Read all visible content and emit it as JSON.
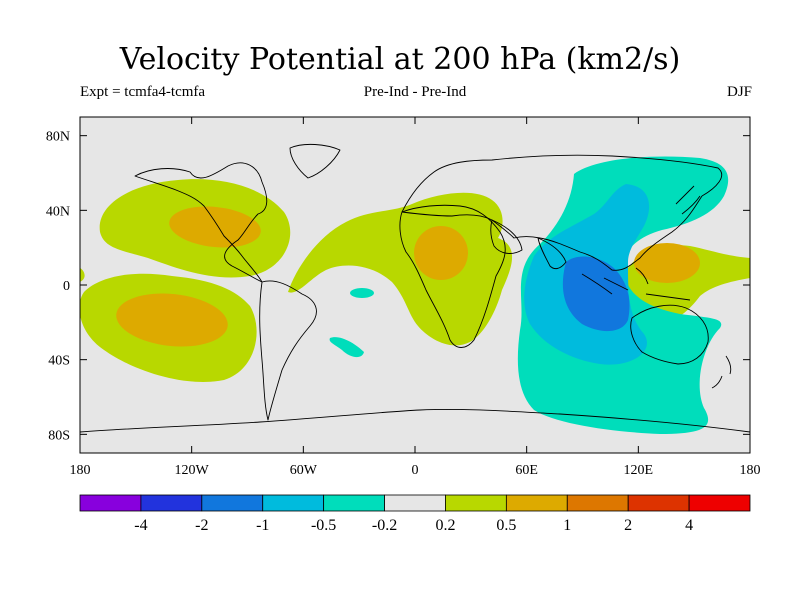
{
  "title": "Velocity Potential at 200 hPa (km2/s)",
  "subtitle_left": "Expt = tcmfa4-tcmfa",
  "subtitle_center": "Pre-Ind - Pre-Ind",
  "subtitle_right": "DJF",
  "chart_data": {
    "type": "heatmap",
    "projection": "cylindrical equidistant, global",
    "x_axis": {
      "range": [
        -180,
        180
      ],
      "ticks": [
        -180,
        -120,
        -60,
        0,
        60,
        120,
        180
      ],
      "tick_labels": [
        "180",
        "120W",
        "60W",
        "0",
        "60E",
        "120E",
        "180"
      ]
    },
    "y_axis": {
      "range": [
        -90,
        90
      ],
      "ticks": [
        80,
        40,
        0,
        -40,
        -80
      ],
      "tick_labels": [
        "80N",
        "40N",
        "0",
        "40S",
        "80S"
      ]
    },
    "colorbar": {
      "levels": [
        -4,
        -2,
        -1,
        -0.5,
        -0.2,
        0.2,
        0.5,
        1,
        2,
        4
      ],
      "level_labels": [
        "-4",
        "-2",
        "-1",
        "-0.5",
        "-0.2",
        "0.2",
        "0.5",
        "1",
        "2",
        "4"
      ],
      "colors": [
        "#8800dd",
        "#2233dd",
        "#1177dd",
        "#00bbdd",
        "#00ddbb",
        "#e6e6e6",
        "#b8d800",
        "#ddaa00",
        "#dd7700",
        "#dd3300",
        "#ee0000"
      ]
    },
    "colors": {
      "background": "#e6e6e6",
      "pos_1": "#b8d800",
      "pos_2": "#ddaa00",
      "neg_1": "#00ddbb",
      "neg_2": "#00bbdd",
      "neg_3": "#1177dd",
      "coast": "#000000"
    },
    "features": [
      {
        "sign": "positive",
        "level": "0.2-0.5",
        "region": "North Pacific / North America",
        "lon": [
          -170,
          -75
        ],
        "lat": [
          5,
          58
        ]
      },
      {
        "sign": "positive",
        "level": "0.5-1",
        "region": "Western United States",
        "lon": [
          -130,
          -95
        ],
        "lat": [
          26,
          46
        ]
      },
      {
        "sign": "positive",
        "level": "0.2-0.5",
        "region": "South Pacific",
        "lon": [
          -180,
          -80
        ],
        "lat": [
          -55,
          5
        ]
      },
      {
        "sign": "positive",
        "level": "0.5-1",
        "region": "Central South Pacific",
        "lon": [
          -150,
          -115
        ],
        "lat": [
          -38,
          -8
        ]
      },
      {
        "sign": "positive",
        "level": "0.2-0.5",
        "region": "Tropical Atlantic / Africa",
        "lon": [
          -70,
          42
        ],
        "lat": [
          -38,
          50
        ]
      },
      {
        "sign": "positive",
        "level": "0.5-1",
        "region": "West-central Africa",
        "lon": [
          0,
          30
        ],
        "lat": [
          0,
          30
        ]
      },
      {
        "sign": "positive",
        "level": "0.2-0.5",
        "region": "Western Pacific",
        "lon": [
          120,
          180
        ],
        "lat": [
          -25,
          25
        ]
      },
      {
        "sign": "positive",
        "level": "0.5-1",
        "region": "Philippine Sea",
        "lon": [
          125,
          150
        ],
        "lat": [
          5,
          22
        ]
      },
      {
        "sign": "negative",
        "level": "-0.5--0.2",
        "region": "Indian Ocean / Asia",
        "lon": [
          40,
          165
        ],
        "lat": [
          -78,
          68
        ]
      },
      {
        "sign": "negative",
        "level": "-1--0.5",
        "region": "Eastern Indian Ocean",
        "lon": [
          40,
          120
        ],
        "lat": [
          -48,
          45
        ]
      },
      {
        "sign": "negative",
        "level": "-2--1",
        "region": "Maritime Continent (west)",
        "lon": [
          62,
          110
        ],
        "lat": [
          -25,
          15
        ]
      },
      {
        "sign": "negative",
        "level": "-0.5--0.2",
        "region": "Small patch, tropical South Atlantic",
        "lon": [
          -35,
          -20
        ],
        "lat": [
          -7,
          -2
        ]
      },
      {
        "sign": "negative",
        "level": "-0.5--0.2",
        "region": "Small patch, South Atlantic",
        "lon": [
          -45,
          -30
        ],
        "lat": [
          -37,
          -27
        ]
      }
    ]
  }
}
